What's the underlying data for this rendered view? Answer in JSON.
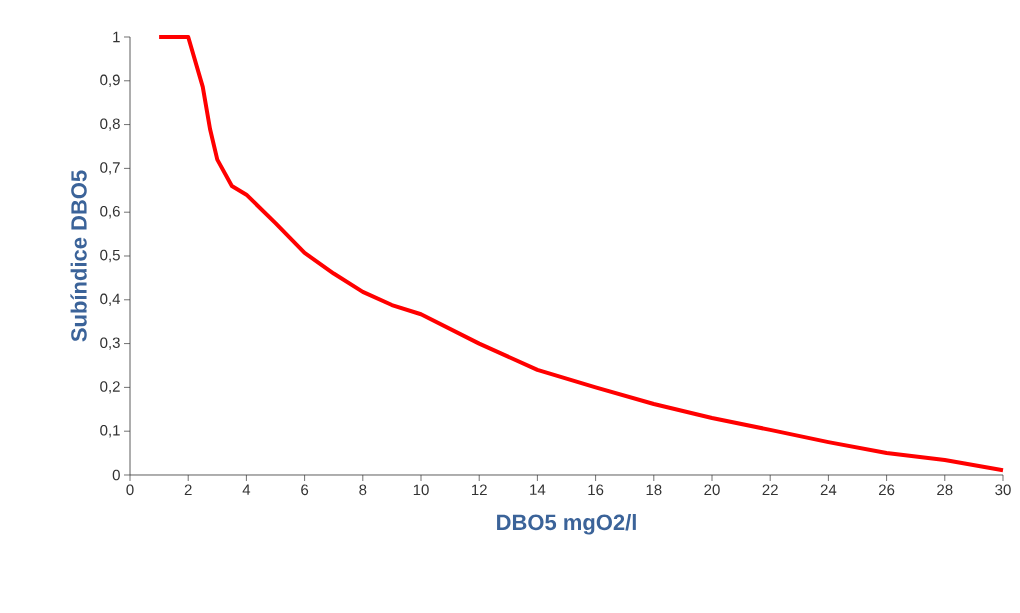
{
  "chart_data": {
    "type": "line",
    "xlabel": "DBO5 mgO2/l",
    "ylabel": "Subíndice DBO5",
    "x": [
      1,
      2,
      2.5,
      2.75,
      3,
      3.5,
      4,
      5,
      6,
      7,
      8,
      9,
      10,
      12,
      14,
      16,
      18,
      20,
      22,
      24,
      26,
      28,
      30
    ],
    "series": [
      {
        "color": "#ff0000",
        "values": [
          1,
          1,
          0.886,
          0.79,
          0.72,
          0.66,
          0.64,
          0.575,
          0.507,
          0.46,
          0.418,
          0.388,
          0.367,
          0.3,
          0.24,
          0.2,
          0.162,
          0.13,
          0.103,
          0.075,
          0.05,
          0.034,
          0.011
        ]
      }
    ],
    "xlim": [
      0,
      30
    ],
    "xticks": [
      0,
      2,
      4,
      6,
      8,
      10,
      12,
      14,
      16,
      18,
      20,
      22,
      24,
      26,
      28,
      30
    ],
    "ylim": [
      0,
      1
    ],
    "yticks": [
      0,
      {
        "value": 0.1,
        "label": "0,1"
      },
      {
        "value": 0.2,
        "label": "0,2"
      },
      {
        "value": 0.3,
        "label": "0,3"
      },
      {
        "value": 0.4,
        "label": "0,4"
      },
      {
        "value": 0.5,
        "label": "0,5"
      },
      {
        "value": 0.6,
        "label": "0,6"
      },
      {
        "value": 0.7,
        "label": "0,7"
      },
      {
        "value": 0.8,
        "label": "0,8"
      },
      {
        "value": 0.9,
        "label": "0,9"
      },
      1
    ],
    "grid": false,
    "marker": "none",
    "line_style": "solid"
  }
}
